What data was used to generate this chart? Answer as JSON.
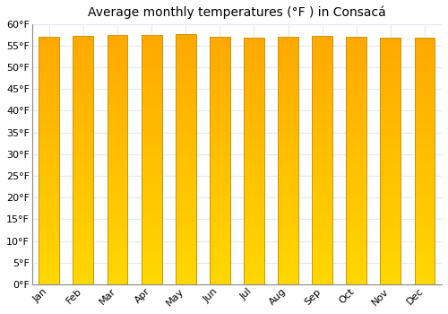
{
  "title": "Average monthly temperatures (°F ) in Consacá",
  "months": [
    "Jan",
    "Feb",
    "Mar",
    "Apr",
    "May",
    "Jun",
    "Jul",
    "Aug",
    "Sep",
    "Oct",
    "Nov",
    "Dec"
  ],
  "values": [
    57.0,
    57.2,
    57.4,
    57.5,
    57.6,
    57.1,
    56.8,
    57.0,
    57.2,
    57.1,
    56.9,
    56.9
  ],
  "ylim": [
    0,
    60
  ],
  "yticks": [
    0,
    5,
    10,
    15,
    20,
    25,
    30,
    35,
    40,
    45,
    50,
    55,
    60
  ],
  "bar_color_top": "#F5A800",
  "bar_color_bottom": "#FFD700",
  "bar_edge_color": "#C8960A",
  "bg_color": "#ffffff",
  "grid_color": "#e8e8f0",
  "title_fontsize": 10,
  "tick_fontsize": 8
}
